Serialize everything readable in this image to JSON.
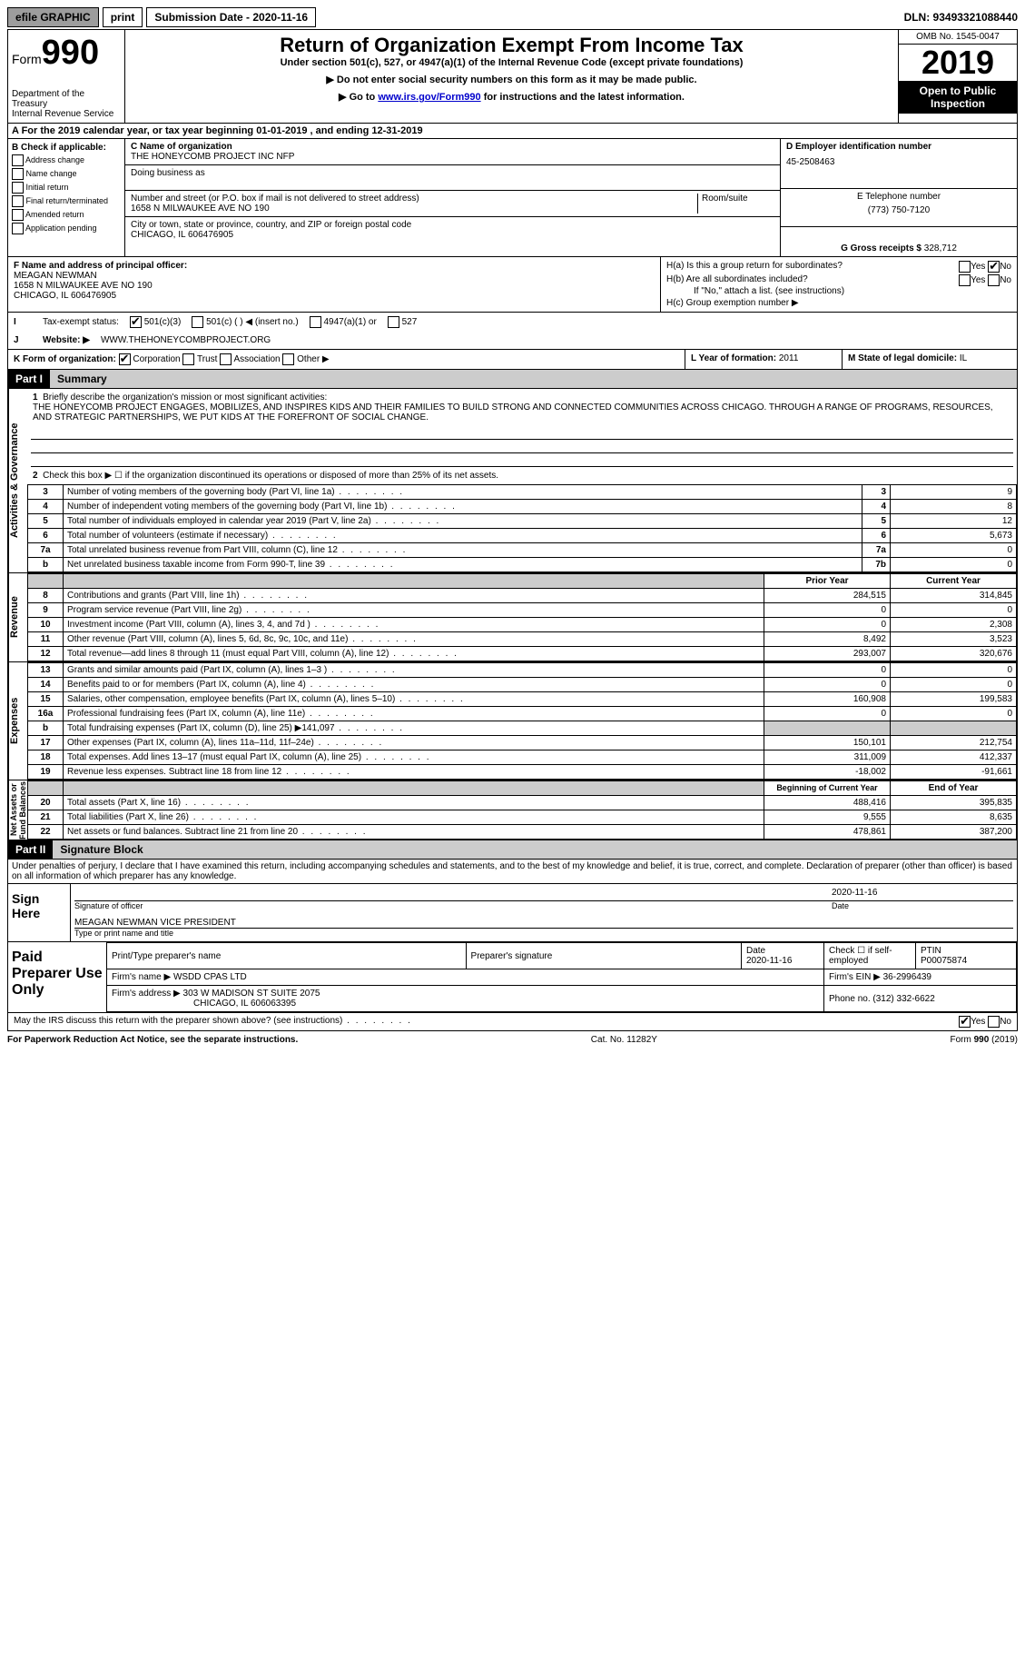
{
  "topbar": {
    "efile": "efile GRAPHIC",
    "print": "print",
    "subdate_lbl": "Submission Date - 2020-11-16",
    "dln": "DLN: 93493321088440"
  },
  "header": {
    "form_lbl": "Form",
    "form_num": "990",
    "dept": "Department of the Treasury\nInternal Revenue Service",
    "title": "Return of Organization Exempt From Income Tax",
    "sub1": "Under section 501(c), 527, or 4947(a)(1) of the Internal Revenue Code (except private foundations)",
    "sub2": "▶ Do not enter social security numbers on this form as it may be made public.",
    "sub3_pre": "▶ Go to ",
    "sub3_link": "www.irs.gov/Form990",
    "sub3_post": " for instructions and the latest information.",
    "omb": "OMB No. 1545-0047",
    "year": "2019",
    "inspect": "Open to Public Inspection"
  },
  "sectionA": "A   For the 2019 calendar year, or tax year beginning 01-01-2019    , and ending 12-31-2019",
  "B": {
    "title": "B Check if applicable:",
    "items": [
      "Address change",
      "Name change",
      "Initial return",
      "Final return/terminated",
      "Amended return",
      "Application pending"
    ]
  },
  "C": {
    "name_lbl": "C Name of organization",
    "name": "THE HONEYCOMB PROJECT INC NFP",
    "dba_lbl": "Doing business as",
    "addr_lbl": "Number and street (or P.O. box if mail is not delivered to street address)",
    "addr": "1658 N MILWAUKEE AVE NO 190",
    "room_lbl": "Room/suite",
    "city_lbl": "City or town, state or province, country, and ZIP or foreign postal code",
    "city": "CHICAGO, IL  606476905"
  },
  "D": {
    "lbl": "D Employer identification number",
    "val": "45-2508463"
  },
  "E": {
    "lbl": "E Telephone number",
    "val": "(773) 750-7120"
  },
  "G": {
    "lbl": "G Gross receipts $",
    "val": "328,712"
  },
  "F": {
    "lbl": "F  Name and address of principal officer:",
    "name": "MEAGAN NEWMAN",
    "addr": "1658 N MILWAUKEE AVE NO 190",
    "city": "CHICAGO, IL  606476905"
  },
  "H": {
    "a": "H(a)  Is this a group return for subordinates?",
    "b": "H(b)  Are all subordinates included?",
    "note": "If \"No,\" attach a list. (see instructions)",
    "c": "H(c)  Group exemption number ▶"
  },
  "I": {
    "lbl": "Tax-exempt status:",
    "opts": [
      "501(c)(3)",
      "501(c) (   ) ◀ (insert no.)",
      "4947(a)(1) or",
      "527"
    ]
  },
  "J": {
    "lbl": "Website: ▶",
    "val": "WWW.THEHONEYCOMBPROJECT.ORG"
  },
  "K": {
    "lbl": "K Form of organization:",
    "opts": [
      "Corporation",
      "Trust",
      "Association",
      "Other ▶"
    ]
  },
  "L": {
    "lbl": "L Year of formation:",
    "val": "2011"
  },
  "M": {
    "lbl": "M State of legal domicile:",
    "val": "IL"
  },
  "part1": {
    "hdr": "Part I",
    "title": "Summary"
  },
  "summary": {
    "line1_lbl": "Briefly describe the organization's mission or most significant activities:",
    "mission": "THE HONEYCOMB PROJECT ENGAGES, MOBILIZES, AND INSPIRES KIDS AND THEIR FAMILIES TO BUILD STRONG AND CONNECTED COMMUNITIES ACROSS CHICAGO. THROUGH A RANGE OF PROGRAMS, RESOURCES, AND STRATEGIC PARTNERSHIPS, WE PUT KIDS AT THE FOREFRONT OF SOCIAL CHANGE.",
    "line2": "Check this box ▶ ☐  if the organization discontinued its operations or disposed of more than 25% of its net assets.",
    "rows_ag": [
      {
        "n": "3",
        "t": "Number of voting members of the governing body (Part VI, line 1a)",
        "ref": "3",
        "v": "9"
      },
      {
        "n": "4",
        "t": "Number of independent voting members of the governing body (Part VI, line 1b)",
        "ref": "4",
        "v": "8"
      },
      {
        "n": "5",
        "t": "Total number of individuals employed in calendar year 2019 (Part V, line 2a)",
        "ref": "5",
        "v": "12"
      },
      {
        "n": "6",
        "t": "Total number of volunteers (estimate if necessary)",
        "ref": "6",
        "v": "5,673"
      },
      {
        "n": "7a",
        "t": "Total unrelated business revenue from Part VIII, column (C), line 12",
        "ref": "7a",
        "v": "0"
      },
      {
        "n": "b",
        "t": "Net unrelated business taxable income from Form 990-T, line 39",
        "ref": "7b",
        "v": "0"
      }
    ],
    "col_hdr": {
      "prior": "Prior Year",
      "curr": "Current Year"
    },
    "rows_rev": [
      {
        "n": "8",
        "t": "Contributions and grants (Part VIII, line 1h)",
        "p": "284,515",
        "c": "314,845"
      },
      {
        "n": "9",
        "t": "Program service revenue (Part VIII, line 2g)",
        "p": "0",
        "c": "0"
      },
      {
        "n": "10",
        "t": "Investment income (Part VIII, column (A), lines 3, 4, and 7d )",
        "p": "0",
        "c": "2,308"
      },
      {
        "n": "11",
        "t": "Other revenue (Part VIII, column (A), lines 5, 6d, 8c, 9c, 10c, and 11e)",
        "p": "8,492",
        "c": "3,523"
      },
      {
        "n": "12",
        "t": "Total revenue—add lines 8 through 11 (must equal Part VIII, column (A), line 12)",
        "p": "293,007",
        "c": "320,676"
      }
    ],
    "rows_exp": [
      {
        "n": "13",
        "t": "Grants and similar amounts paid (Part IX, column (A), lines 1–3 )",
        "p": "0",
        "c": "0"
      },
      {
        "n": "14",
        "t": "Benefits paid to or for members (Part IX, column (A), line 4)",
        "p": "0",
        "c": "0"
      },
      {
        "n": "15",
        "t": "Salaries, other compensation, employee benefits (Part IX, column (A), lines 5–10)",
        "p": "160,908",
        "c": "199,583"
      },
      {
        "n": "16a",
        "t": "Professional fundraising fees (Part IX, column (A), line 11e)",
        "p": "0",
        "c": "0"
      },
      {
        "n": "b",
        "t": "Total fundraising expenses (Part IX, column (D), line 25) ▶141,097",
        "p": "grey",
        "c": "grey"
      },
      {
        "n": "17",
        "t": "Other expenses (Part IX, column (A), lines 11a–11d, 11f–24e)",
        "p": "150,101",
        "c": "212,754"
      },
      {
        "n": "18",
        "t": "Total expenses. Add lines 13–17 (must equal Part IX, column (A), line 25)",
        "p": "311,009",
        "c": "412,337"
      },
      {
        "n": "19",
        "t": "Revenue less expenses. Subtract line 18 from line 12",
        "p": "-18,002",
        "c": "-91,661"
      }
    ],
    "col_hdr2": {
      "beg": "Beginning of Current Year",
      "end": "End of Year"
    },
    "rows_na": [
      {
        "n": "20",
        "t": "Total assets (Part X, line 16)",
        "p": "488,416",
        "c": "395,835"
      },
      {
        "n": "21",
        "t": "Total liabilities (Part X, line 26)",
        "p": "9,555",
        "c": "8,635"
      },
      {
        "n": "22",
        "t": "Net assets or fund balances. Subtract line 21 from line 20",
        "p": "478,861",
        "c": "387,200"
      }
    ]
  },
  "sidelabels": {
    "ag": "Activities & Governance",
    "rev": "Revenue",
    "exp": "Expenses",
    "na": "Net Assets or\nFund Balances"
  },
  "part2": {
    "hdr": "Part II",
    "title": "Signature Block"
  },
  "sig": {
    "decl": "Under penalties of perjury, I declare that I have examined this return, including accompanying schedules and statements, and to the best of my knowledge and belief, it is true, correct, and complete. Declaration of preparer (other than officer) is based on all information of which preparer has any knowledge.",
    "sign_here": "Sign Here",
    "sig_officer": "Signature of officer",
    "date": "Date",
    "sig_date": "2020-11-16",
    "name": "MEAGAN NEWMAN  VICE PRESIDENT",
    "name_lbl": "Type or print name and title"
  },
  "prep": {
    "side": "Paid Preparer Use Only",
    "hdr": [
      "Print/Type preparer's name",
      "Preparer's signature",
      "Date",
      "Check ☐  if self-employed",
      "PTIN"
    ],
    "date": "2020-11-16",
    "ptin": "P00075874",
    "firm_lbl": "Firm's name    ▶",
    "firm": "WSDD CPAS LTD",
    "ein_lbl": "Firm's EIN ▶",
    "ein": "36-2996439",
    "addr_lbl": "Firm's address ▶",
    "addr": "303 W MADISON ST SUITE 2075",
    "addr2": "CHICAGO, IL  606063395",
    "phone_lbl": "Phone no.",
    "phone": "(312) 332-6622"
  },
  "footer": {
    "discuss": "May the IRS discuss this return with the preparer shown above? (see instructions)",
    "paperwork": "For Paperwork Reduction Act Notice, see the separate instructions.",
    "cat": "Cat. No. 11282Y",
    "form": "Form 990 (2019)"
  }
}
